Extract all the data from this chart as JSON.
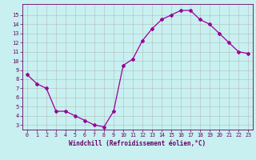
{
  "x": [
    0,
    1,
    2,
    3,
    4,
    5,
    6,
    7,
    8,
    9,
    10,
    11,
    12,
    13,
    14,
    15,
    16,
    17,
    18,
    19,
    20,
    21,
    22,
    23
  ],
  "y": [
    8.5,
    7.5,
    7.0,
    4.5,
    4.5,
    4.0,
    3.5,
    3.0,
    2.8,
    4.5,
    9.5,
    10.2,
    12.2,
    13.5,
    14.5,
    15.0,
    15.5,
    15.5,
    14.5,
    14.0,
    13.0,
    12.0,
    11.0,
    10.8
  ],
  "line_color": "#990099",
  "marker": "D",
  "markersize": 2.0,
  "linewidth": 0.9,
  "background_color": "#c8f0f0",
  "grid_color": "#b0b0b0",
  "xlabel": "Windchill (Refroidissement éolien,°C)",
  "xlabel_color": "#660066",
  "tick_color": "#660066",
  "ylim": [
    2.5,
    16.2
  ],
  "xlim": [
    -0.5,
    23.5
  ],
  "yticks": [
    3,
    4,
    5,
    6,
    7,
    8,
    9,
    10,
    11,
    12,
    13,
    14,
    15
  ],
  "xticks": [
    0,
    1,
    2,
    3,
    4,
    5,
    6,
    7,
    8,
    9,
    10,
    11,
    12,
    13,
    14,
    15,
    16,
    17,
    18,
    19,
    20,
    21,
    22,
    23
  ]
}
